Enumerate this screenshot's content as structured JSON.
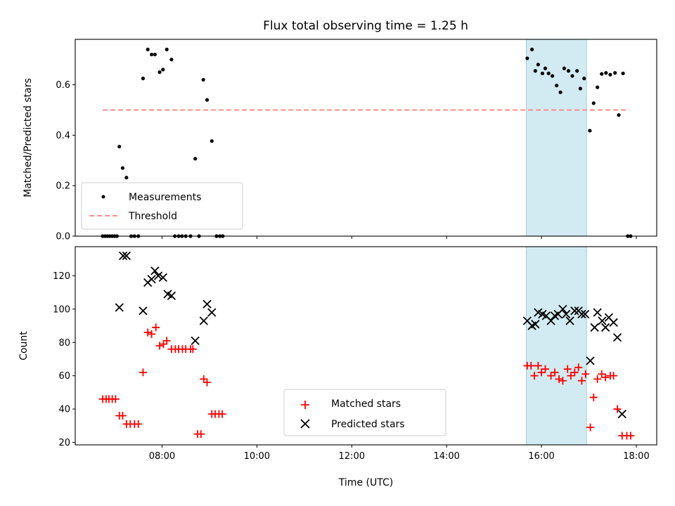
{
  "chart_data": [
    {
      "type": "scatter",
      "title": "Flux total observing time = 1.25 h",
      "ylabel": "Matched/Predicted stars",
      "xlabel": "",
      "xlim": [
        6.17,
        18.43
      ],
      "ylim": [
        0.0,
        0.78
      ],
      "yticks": [
        0.0,
        0.2,
        0.4,
        0.6
      ],
      "ytick_labels": [
        "0.0",
        "0.2",
        "0.4",
        "0.6"
      ],
      "xticks": [
        8,
        10,
        12,
        14,
        16,
        18
      ],
      "grid": false,
      "highlight_span": {
        "x0": 15.68,
        "x1": 16.95,
        "color": "#add8e6"
      },
      "threshold": {
        "y": 0.5,
        "x0": 6.75,
        "x1": 17.85,
        "color": "#ff7f7f"
      },
      "legend": {
        "position": "lower-left",
        "entries": [
          "Measurements",
          "Threshold"
        ]
      },
      "series": [
        {
          "name": "Measurements",
          "marker": "dot",
          "color": "#000000",
          "points": [
            [
              6.75,
              0.0
            ],
            [
              6.8,
              0.0
            ],
            [
              6.85,
              0.0
            ],
            [
              6.9,
              0.0
            ],
            [
              6.95,
              0.0
            ],
            [
              7.0,
              0.0
            ],
            [
              7.05,
              0.0
            ],
            [
              7.1,
              0.355
            ],
            [
              7.17,
              0.27
            ],
            [
              7.25,
              0.232
            ],
            [
              7.35,
              0.0
            ],
            [
              7.42,
              0.0
            ],
            [
              7.5,
              0.0
            ],
            [
              7.6,
              0.625
            ],
            [
              7.7,
              0.74
            ],
            [
              7.78,
              0.72
            ],
            [
              7.85,
              0.72
            ],
            [
              7.95,
              0.65
            ],
            [
              8.02,
              0.66
            ],
            [
              8.1,
              0.74
            ],
            [
              8.2,
              0.7
            ],
            [
              8.27,
              0.0
            ],
            [
              8.35,
              0.0
            ],
            [
              8.42,
              0.0
            ],
            [
              8.5,
              0.0
            ],
            [
              8.6,
              0.0
            ],
            [
              8.7,
              0.307
            ],
            [
              8.78,
              0.0
            ],
            [
              8.87,
              0.62
            ],
            [
              8.95,
              0.54
            ],
            [
              9.05,
              0.377
            ],
            [
              9.15,
              0.0
            ],
            [
              9.22,
              0.0
            ],
            [
              9.28,
              0.0
            ],
            [
              15.7,
              0.705
            ],
            [
              15.8,
              0.74
            ],
            [
              15.87,
              0.655
            ],
            [
              15.93,
              0.68
            ],
            [
              16.02,
              0.645
            ],
            [
              16.08,
              0.665
            ],
            [
              16.15,
              0.645
            ],
            [
              16.23,
              0.635
            ],
            [
              16.32,
              0.597
            ],
            [
              16.4,
              0.57
            ],
            [
              16.48,
              0.665
            ],
            [
              16.57,
              0.655
            ],
            [
              16.65,
              0.635
            ],
            [
              16.75,
              0.655
            ],
            [
              16.82,
              0.585
            ],
            [
              16.9,
              0.625
            ],
            [
              17.02,
              0.418
            ],
            [
              17.1,
              0.527
            ],
            [
              17.18,
              0.59
            ],
            [
              17.27,
              0.643
            ],
            [
              17.36,
              0.647
            ],
            [
              17.45,
              0.64
            ],
            [
              17.55,
              0.647
            ],
            [
              17.63,
              0.48
            ],
            [
              17.72,
              0.645
            ],
            [
              17.82,
              0.0
            ],
            [
              17.88,
              0.0
            ]
          ]
        }
      ]
    },
    {
      "type": "scatter",
      "title": "",
      "ylabel": "Count",
      "xlabel": "Time (UTC)",
      "xlim": [
        6.17,
        18.43
      ],
      "ylim": [
        18.5,
        137.5
      ],
      "yticks": [
        20,
        40,
        60,
        80,
        100,
        120
      ],
      "ytick_labels": [
        "20",
        "40",
        "60",
        "80",
        "100",
        "120"
      ],
      "xticks": [
        8,
        10,
        12,
        14,
        16,
        18
      ],
      "xtick_labels": [
        "08:00",
        "10:00",
        "12:00",
        "14:00",
        "16:00",
        "18:00"
      ],
      "grid": false,
      "highlight_span": {
        "x0": 15.68,
        "x1": 16.95,
        "color": "#add8e6"
      },
      "legend": {
        "position": "lower-center",
        "entries": [
          "Matched stars",
          "Predicted stars"
        ]
      },
      "series": [
        {
          "name": "Matched stars",
          "marker": "plus",
          "color": "#ff0000",
          "points": [
            [
              6.75,
              46
            ],
            [
              6.82,
              46
            ],
            [
              6.88,
              46
            ],
            [
              6.95,
              46
            ],
            [
              7.02,
              46
            ],
            [
              7.1,
              36
            ],
            [
              7.17,
              36
            ],
            [
              7.25,
              31
            ],
            [
              7.33,
              31
            ],
            [
              7.42,
              31
            ],
            [
              7.5,
              31
            ],
            [
              7.6,
              62
            ],
            [
              7.7,
              86
            ],
            [
              7.78,
              85
            ],
            [
              7.87,
              89
            ],
            [
              7.95,
              78
            ],
            [
              8.03,
              79
            ],
            [
              8.1,
              81
            ],
            [
              8.2,
              76
            ],
            [
              8.28,
              76
            ],
            [
              8.35,
              76
            ],
            [
              8.43,
              76
            ],
            [
              8.5,
              76
            ],
            [
              8.6,
              76
            ],
            [
              8.65,
              76
            ],
            [
              8.75,
              25
            ],
            [
              8.82,
              25
            ],
            [
              8.88,
              58
            ],
            [
              8.95,
              56
            ],
            [
              9.05,
              37
            ],
            [
              9.12,
              37
            ],
            [
              9.2,
              37
            ],
            [
              9.27,
              37
            ],
            [
              15.7,
              66
            ],
            [
              15.78,
              66
            ],
            [
              15.85,
              60
            ],
            [
              15.93,
              66
            ],
            [
              16.0,
              62
            ],
            [
              16.08,
              64
            ],
            [
              16.2,
              60
            ],
            [
              16.28,
              62
            ],
            [
              16.37,
              58
            ],
            [
              16.45,
              57
            ],
            [
              16.55,
              64
            ],
            [
              16.62,
              60
            ],
            [
              16.7,
              62
            ],
            [
              16.78,
              65
            ],
            [
              16.85,
              57
            ],
            [
              16.93,
              61
            ],
            [
              17.03,
              29
            ],
            [
              17.1,
              47
            ],
            [
              17.18,
              58
            ],
            [
              17.27,
              61
            ],
            [
              17.35,
              59
            ],
            [
              17.45,
              60
            ],
            [
              17.52,
              60
            ],
            [
              17.6,
              40
            ],
            [
              17.7,
              24
            ],
            [
              17.8,
              24
            ],
            [
              17.88,
              24
            ]
          ]
        },
        {
          "name": "Predicted stars",
          "marker": "x",
          "color": "#000000",
          "points": [
            [
              7.1,
              101
            ],
            [
              7.18,
              132
            ],
            [
              7.25,
              132
            ],
            [
              7.6,
              99
            ],
            [
              7.7,
              116
            ],
            [
              7.78,
              118
            ],
            [
              7.85,
              123
            ],
            [
              7.92,
              120
            ],
            [
              8.02,
              119
            ],
            [
              8.12,
              109
            ],
            [
              8.2,
              108
            ],
            [
              8.7,
              81
            ],
            [
              8.88,
              93
            ],
            [
              8.95,
              103
            ],
            [
              9.05,
              98
            ],
            [
              15.7,
              93
            ],
            [
              15.8,
              90
            ],
            [
              15.87,
              91
            ],
            [
              15.93,
              98
            ],
            [
              16.02,
              97
            ],
            [
              16.1,
              96
            ],
            [
              16.2,
              93
            ],
            [
              16.28,
              96
            ],
            [
              16.35,
              97
            ],
            [
              16.45,
              100
            ],
            [
              16.52,
              97
            ],
            [
              16.6,
              93
            ],
            [
              16.7,
              99
            ],
            [
              16.78,
              99
            ],
            [
              16.85,
              97
            ],
            [
              16.92,
              97
            ],
            [
              17.03,
              69
            ],
            [
              17.12,
              89
            ],
            [
              17.18,
              98
            ],
            [
              17.28,
              93
            ],
            [
              17.35,
              89
            ],
            [
              17.42,
              95
            ],
            [
              17.52,
              92
            ],
            [
              17.6,
              83
            ],
            [
              17.7,
              37
            ]
          ]
        }
      ]
    }
  ]
}
